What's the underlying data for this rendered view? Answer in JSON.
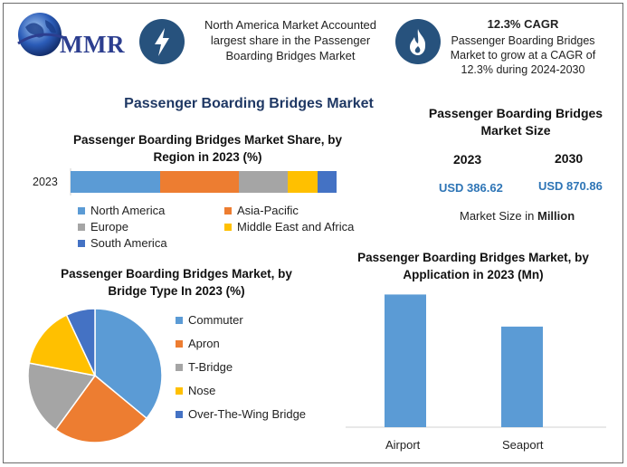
{
  "logo": {
    "text": "MMR"
  },
  "highlights": {
    "left": {
      "icon": "lightning-bolt-icon",
      "text": "North America Market Accounted largest share in the Passenger Boarding Bridges Market"
    },
    "right": {
      "icon": "flame-icon",
      "title": "12.3% CAGR",
      "text": "Passenger Boarding Bridges Market to grow at a CAGR of 12.3% during 2024-2030"
    }
  },
  "main_title": "Passenger Boarding Bridges Market",
  "market_size": {
    "title": "Passenger Boarding Bridges Market Size",
    "years": [
      "2023",
      "2030"
    ],
    "values": [
      "USD 386.62",
      "USD 870.86"
    ],
    "note_prefix": "Market Size in ",
    "note_unit": "Million"
  },
  "chart_data": [
    {
      "type": "bar",
      "orientation": "horizontal-stacked",
      "title": "Passenger Boarding Bridges Market Share, by Region in 2023 (%)",
      "categories": [
        "2023"
      ],
      "series": [
        {
          "name": "North America",
          "values": [
            33
          ],
          "color": "#5b9bd5"
        },
        {
          "name": "Asia-Pacific",
          "values": [
            29
          ],
          "color": "#ed7d31"
        },
        {
          "name": "Europe",
          "values": [
            18
          ],
          "color": "#a5a5a5"
        },
        {
          "name": "Middle East and Africa",
          "values": [
            11
          ],
          "color": "#ffc000"
        },
        {
          "name": "South America",
          "values": [
            7
          ],
          "color": "#4472c4"
        }
      ],
      "legend": "bottom"
    },
    {
      "type": "pie",
      "title": "Passenger Boarding Bridges Market, by Bridge Type In 2023 (%)",
      "labels": [
        "Commuter",
        "Apron",
        "T-Bridge",
        "Nose",
        "Over-The-Wing Bridge"
      ],
      "values": [
        36,
        24,
        18,
        15,
        7
      ],
      "colors": [
        "#5b9bd5",
        "#ed7d31",
        "#a5a5a5",
        "#ffc000",
        "#4472c4"
      ],
      "legend": "right"
    },
    {
      "type": "bar",
      "title": "Passenger Boarding Bridges Market, by Application in 2023 (Mn)",
      "categories": [
        "Airport",
        "Seaport"
      ],
      "values": [
        215,
        163
      ],
      "ylim": [
        0,
        220
      ],
      "color": "#5b9bd5"
    }
  ]
}
